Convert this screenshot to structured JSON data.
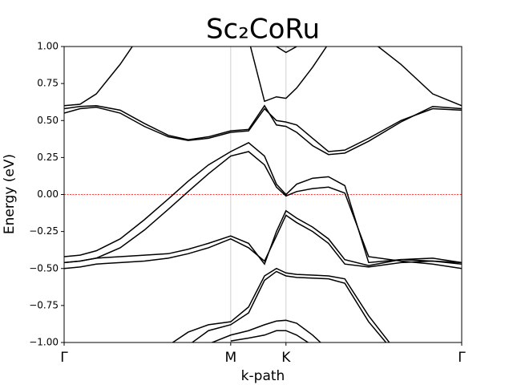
{
  "chart_data": {
    "type": "line",
    "title": "Sc₂CoRu",
    "xlabel": "k-path",
    "ylabel": "Energy (eV)",
    "xlim": [
      0,
      1
    ],
    "ylim": [
      -1,
      1
    ],
    "xticks": [
      {
        "value": 0,
        "label": "Γ"
      },
      {
        "value": 0.419,
        "label": "M"
      },
      {
        "value": 0.558,
        "label": "K"
      },
      {
        "value": 1,
        "label": "Γ"
      }
    ],
    "yticks": [
      {
        "value": -1,
        "label": "−1.00"
      },
      {
        "value": -0.75,
        "label": "−0.75"
      },
      {
        "value": -0.5,
        "label": "−0.50"
      },
      {
        "value": -0.25,
        "label": "−0.25"
      },
      {
        "value": 0,
        "label": "0.00"
      },
      {
        "value": 0.25,
        "label": "0.25"
      },
      {
        "value": 0.5,
        "label": "0.50"
      },
      {
        "value": 0.75,
        "label": "0.75"
      },
      {
        "value": 1,
        "label": "1.00"
      }
    ],
    "x_grid": true,
    "fermi_level": 0,
    "fermi_color": "#ff0000",
    "x": [
      0,
      0.04,
      0.081,
      0.141,
      0.202,
      0.262,
      0.312,
      0.363,
      0.419,
      0.464,
      0.504,
      0.534,
      0.558,
      0.585,
      0.625,
      0.665,
      0.706,
      0.766,
      0.847,
      0.927,
      1
    ],
    "series": [
      {
        "color": "#000000",
        "values": [
          0.6,
          0.61,
          0.68,
          0.88,
          1.12,
          null,
          null,
          null,
          null,
          null,
          null,
          null,
          null,
          null,
          null,
          null,
          null,
          1.05,
          0.88,
          0.68,
          0.6
        ]
      },
      {
        "color": "#000000",
        "values": [
          null,
          null,
          null,
          null,
          null,
          null,
          null,
          null,
          null,
          1.05,
          0.63,
          0.66,
          0.65,
          0.72,
          0.86,
          1.02,
          null,
          null,
          null,
          null,
          null
        ]
      },
      {
        "color": "#000000",
        "values": [
          null,
          null,
          null,
          null,
          null,
          null,
          null,
          null,
          null,
          null,
          null,
          1.0,
          0.96,
          1.0,
          null,
          null,
          null,
          null,
          null,
          null,
          null
        ]
      },
      {
        "color": "#000000",
        "values": [
          0.55,
          0.58,
          0.59,
          0.55,
          0.46,
          0.39,
          0.365,
          0.38,
          0.42,
          0.43,
          0.58,
          0.5,
          0.49,
          0.47,
          0.38,
          0.29,
          0.3,
          0.38,
          0.5,
          0.58,
          0.57
        ]
      },
      {
        "color": "#000000",
        "values": [
          0.58,
          0.595,
          0.6,
          0.57,
          0.48,
          0.4,
          0.37,
          0.39,
          0.43,
          0.44,
          0.6,
          0.47,
          0.46,
          0.42,
          0.33,
          0.27,
          0.28,
          0.36,
          0.49,
          0.595,
          0.58
        ]
      },
      {
        "color": "#000000",
        "values": [
          -0.42,
          -0.41,
          -0.38,
          -0.3,
          -0.17,
          -0.03,
          0.09,
          0.2,
          0.29,
          0.35,
          0.26,
          0.07,
          0.0,
          0.07,
          0.11,
          0.12,
          0.06,
          -0.46,
          -0.44,
          -0.45,
          -0.46
        ]
      },
      {
        "color": "#000000",
        "values": [
          -0.46,
          -0.45,
          -0.43,
          -0.36,
          -0.24,
          -0.1,
          0.02,
          0.14,
          0.26,
          0.29,
          0.2,
          0.05,
          -0.01,
          0.02,
          0.04,
          0.05,
          0.01,
          -0.42,
          -0.45,
          -0.47,
          -0.5
        ]
      },
      {
        "color": "#000000",
        "values": [
          -0.46,
          -0.45,
          -0.43,
          -0.42,
          -0.41,
          -0.4,
          -0.37,
          -0.33,
          -0.28,
          -0.33,
          -0.47,
          -0.25,
          -0.11,
          -0.16,
          -0.22,
          -0.3,
          -0.44,
          -0.48,
          -0.44,
          -0.43,
          -0.46
        ]
      },
      {
        "color": "#000000",
        "values": [
          -0.5,
          -0.49,
          -0.47,
          -0.46,
          -0.45,
          -0.43,
          -0.4,
          -0.36,
          -0.3,
          -0.36,
          -0.45,
          -0.28,
          -0.14,
          -0.19,
          -0.25,
          -0.33,
          -0.47,
          -0.49,
          -0.46,
          -0.45,
          -0.47
        ]
      },
      {
        "color": "#000000",
        "values": [
          null,
          null,
          null,
          null,
          null,
          -1.02,
          -0.93,
          -0.88,
          -0.86,
          -0.76,
          -0.55,
          -0.5,
          -0.53,
          -0.54,
          -0.545,
          -0.55,
          -0.57,
          -0.82,
          -1.1,
          null,
          null
        ]
      },
      {
        "color": "#000000",
        "values": [
          null,
          null,
          null,
          null,
          null,
          null,
          -1.02,
          -0.92,
          -0.88,
          -0.8,
          -0.58,
          -0.52,
          -0.55,
          -0.56,
          -0.565,
          -0.57,
          -0.6,
          -0.86,
          -1.12,
          null,
          null
        ]
      },
      {
        "color": "#000000",
        "values": [
          null,
          null,
          null,
          null,
          null,
          null,
          null,
          -1.01,
          -0.95,
          -0.92,
          -0.88,
          -0.855,
          -0.85,
          -0.87,
          -0.95,
          -1.05,
          null,
          null,
          null,
          null,
          null
        ]
      },
      {
        "color": "#000000",
        "values": [
          null,
          null,
          null,
          null,
          null,
          null,
          null,
          null,
          -0.99,
          -0.97,
          -0.95,
          -0.92,
          -0.92,
          -0.95,
          -1.02,
          null,
          null,
          null,
          null,
          null,
          null
        ]
      }
    ]
  }
}
